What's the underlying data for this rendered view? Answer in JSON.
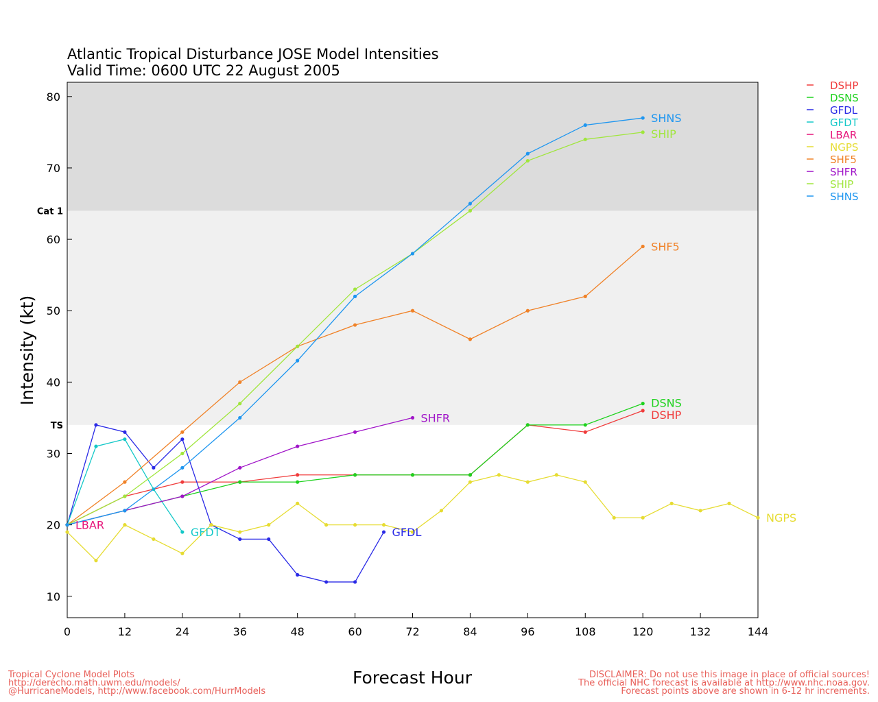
{
  "chart_data": {
    "type": "line",
    "title": "Atlantic Tropical Disturbance JOSE Model Intensities",
    "subtitle": "Valid Time: 0600 UTC 22 August 2005",
    "xlabel": "Forecast Hour",
    "ylabel": "Intensity (kt)",
    "xlim": [
      0,
      144
    ],
    "ylim": [
      7,
      82
    ],
    "x_ticks": [
      0,
      12,
      24,
      36,
      48,
      60,
      72,
      84,
      96,
      108,
      120,
      132,
      144
    ],
    "y_ticks": [
      10,
      20,
      30,
      40,
      50,
      60,
      70,
      80
    ],
    "bands": [
      {
        "label": "TS",
        "from": 34,
        "to": 64,
        "color": "#f0f0f0"
      },
      {
        "label": "Cat 1",
        "from": 64,
        "to": 82,
        "color": "#dcdcdc"
      }
    ],
    "legend_position": "right",
    "series": [
      {
        "name": "DSHP",
        "color": "#f03c3c",
        "x": [
          0,
          12,
          24,
          36,
          48,
          60,
          72,
          84,
          96,
          108,
          120
        ],
        "y": [
          20,
          24,
          26,
          26,
          27,
          27,
          27,
          27,
          34,
          33,
          36
        ]
      },
      {
        "name": "DSNS",
        "color": "#1ed21e",
        "x": [
          0,
          12,
          24,
          36,
          48,
          60,
          72,
          84,
          96,
          108,
          120
        ],
        "y": [
          20,
          22,
          24,
          26,
          26,
          27,
          27,
          27,
          34,
          34,
          37
        ]
      },
      {
        "name": "GFDL",
        "color": "#2a2ae6",
        "x": [
          0,
          6,
          12,
          18,
          24,
          30,
          36,
          42,
          48,
          54,
          60,
          66
        ],
        "y": [
          20,
          34,
          33,
          28,
          32,
          20,
          18,
          18,
          13,
          12,
          12,
          19
        ]
      },
      {
        "name": "GFDT",
        "color": "#14c8c8",
        "x": [
          0,
          6,
          12,
          18,
          24
        ],
        "y": [
          20,
          31,
          32,
          25,
          19
        ]
      },
      {
        "name": "LBAR",
        "color": "#e6147a",
        "x": [
          0
        ],
        "y": [
          20
        ]
      },
      {
        "name": "NGPS",
        "color": "#e6dc32",
        "x": [
          0,
          6,
          12,
          18,
          24,
          30,
          36,
          42,
          48,
          54,
          60,
          66,
          72,
          78,
          84,
          90,
          96,
          102,
          108,
          114,
          120,
          126,
          132,
          138,
          144
        ],
        "y": [
          19,
          15,
          20,
          18,
          16,
          20,
          19,
          20,
          23,
          20,
          20,
          20,
          19,
          22,
          26,
          27,
          26,
          27,
          26,
          21,
          21,
          23,
          22,
          23,
          21
        ]
      },
      {
        "name": "SHF5",
        "color": "#f08228",
        "x": [
          0,
          12,
          24,
          36,
          48,
          60,
          72,
          84,
          96,
          108,
          120
        ],
        "y": [
          20,
          26,
          33,
          40,
          45,
          48,
          50,
          46,
          50,
          52,
          59
        ]
      },
      {
        "name": "SHFR",
        "color": "#a014c8",
        "x": [
          0,
          12,
          24,
          36,
          48,
          60,
          72
        ],
        "y": [
          20,
          22,
          24,
          28,
          31,
          33,
          35
        ]
      },
      {
        "name": "SHIP",
        "color": "#a0e63c",
        "x": [
          0,
          12,
          24,
          36,
          48,
          60,
          72,
          84,
          96,
          108,
          120
        ],
        "y": [
          20,
          24,
          30,
          37,
          45,
          53,
          58,
          64,
          71,
          74,
          75
        ]
      },
      {
        "name": "SHNS",
        "color": "#1e96f0",
        "x": [
          0,
          12,
          24,
          36,
          48,
          60,
          72,
          84,
          96,
          108,
          120
        ],
        "y": [
          20,
          22,
          28,
          35,
          43,
          52,
          58,
          65,
          72,
          76,
          77
        ]
      }
    ]
  },
  "footer": {
    "left": [
      "Tropical Cyclone Model Plots",
      "http://derecho.math.uwm.edu/models/",
      "@HurricaneModels, http://www.facebook.com/HurrModels"
    ],
    "right": [
      "DISCLAIMER: Do not use this image in place of official sources!",
      "The official NHC forecast is available at http://www.nhc.noaa.gov.",
      "Forecast points above are shown in 6-12 hr increments."
    ]
  }
}
